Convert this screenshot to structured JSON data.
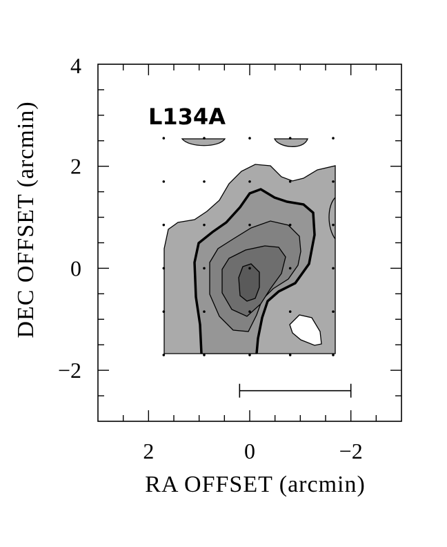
{
  "chart_data": {
    "type": "contour",
    "title": "L134A",
    "xlabel": "RA OFFSET (arcmin)",
    "ylabel": "DEC OFFSET (arcmin)",
    "xlim": [
      3,
      -3
    ],
    "ylim": [
      -3,
      4
    ],
    "x_ticks": [
      2,
      0,
      -2
    ],
    "x_tick_labels": [
      "2",
      "0",
      "−2"
    ],
    "y_ticks": [
      -2,
      0,
      2,
      4
    ],
    "y_tick_labels": [
      "−2",
      "0",
      "2",
      "4"
    ],
    "x_minor_step": 0.5,
    "y_minor_step": 0.5,
    "grid": false,
    "sample_points": [
      [
        1.7,
        2.55
      ],
      [
        0.9,
        2.55
      ],
      [
        0.0,
        2.55
      ],
      [
        -0.8,
        2.55
      ],
      [
        -1.65,
        2.55
      ],
      [
        1.7,
        1.7
      ],
      [
        0.9,
        1.7
      ],
      [
        0.0,
        1.7
      ],
      [
        -0.8,
        1.7
      ],
      [
        -1.65,
        1.7
      ],
      [
        1.7,
        0.85
      ],
      [
        0.9,
        0.85
      ],
      [
        0.0,
        0.85
      ],
      [
        -0.8,
        0.85
      ],
      [
        -1.65,
        0.85
      ],
      [
        1.7,
        0.0
      ],
      [
        0.9,
        0.0
      ],
      [
        0.0,
        0.0
      ],
      [
        -0.8,
        0.0
      ],
      [
        -1.65,
        0.0
      ],
      [
        1.7,
        -0.85
      ],
      [
        0.9,
        -0.85
      ],
      [
        0.0,
        -0.85
      ],
      [
        -0.8,
        -0.85
      ],
      [
        -1.65,
        -0.85
      ],
      [
        1.7,
        -1.7
      ],
      [
        0.9,
        -1.7
      ],
      [
        0.0,
        -1.7
      ],
      [
        -0.8,
        -1.7
      ],
      [
        -1.65,
        -1.7
      ]
    ],
    "contour_levels": 5,
    "highlighted_contour_level": 2,
    "scale_bar": {
      "x_from": 0.2,
      "x_to": -2.0,
      "y": -2.4
    },
    "colors": {
      "level_1": "#aaaaaa",
      "level_2": "#969696",
      "level_3": "#828282",
      "level_4": "#6e6e6e",
      "level_5": "#5a5a5a",
      "hole": "#ffffff",
      "line": "#000000"
    }
  }
}
